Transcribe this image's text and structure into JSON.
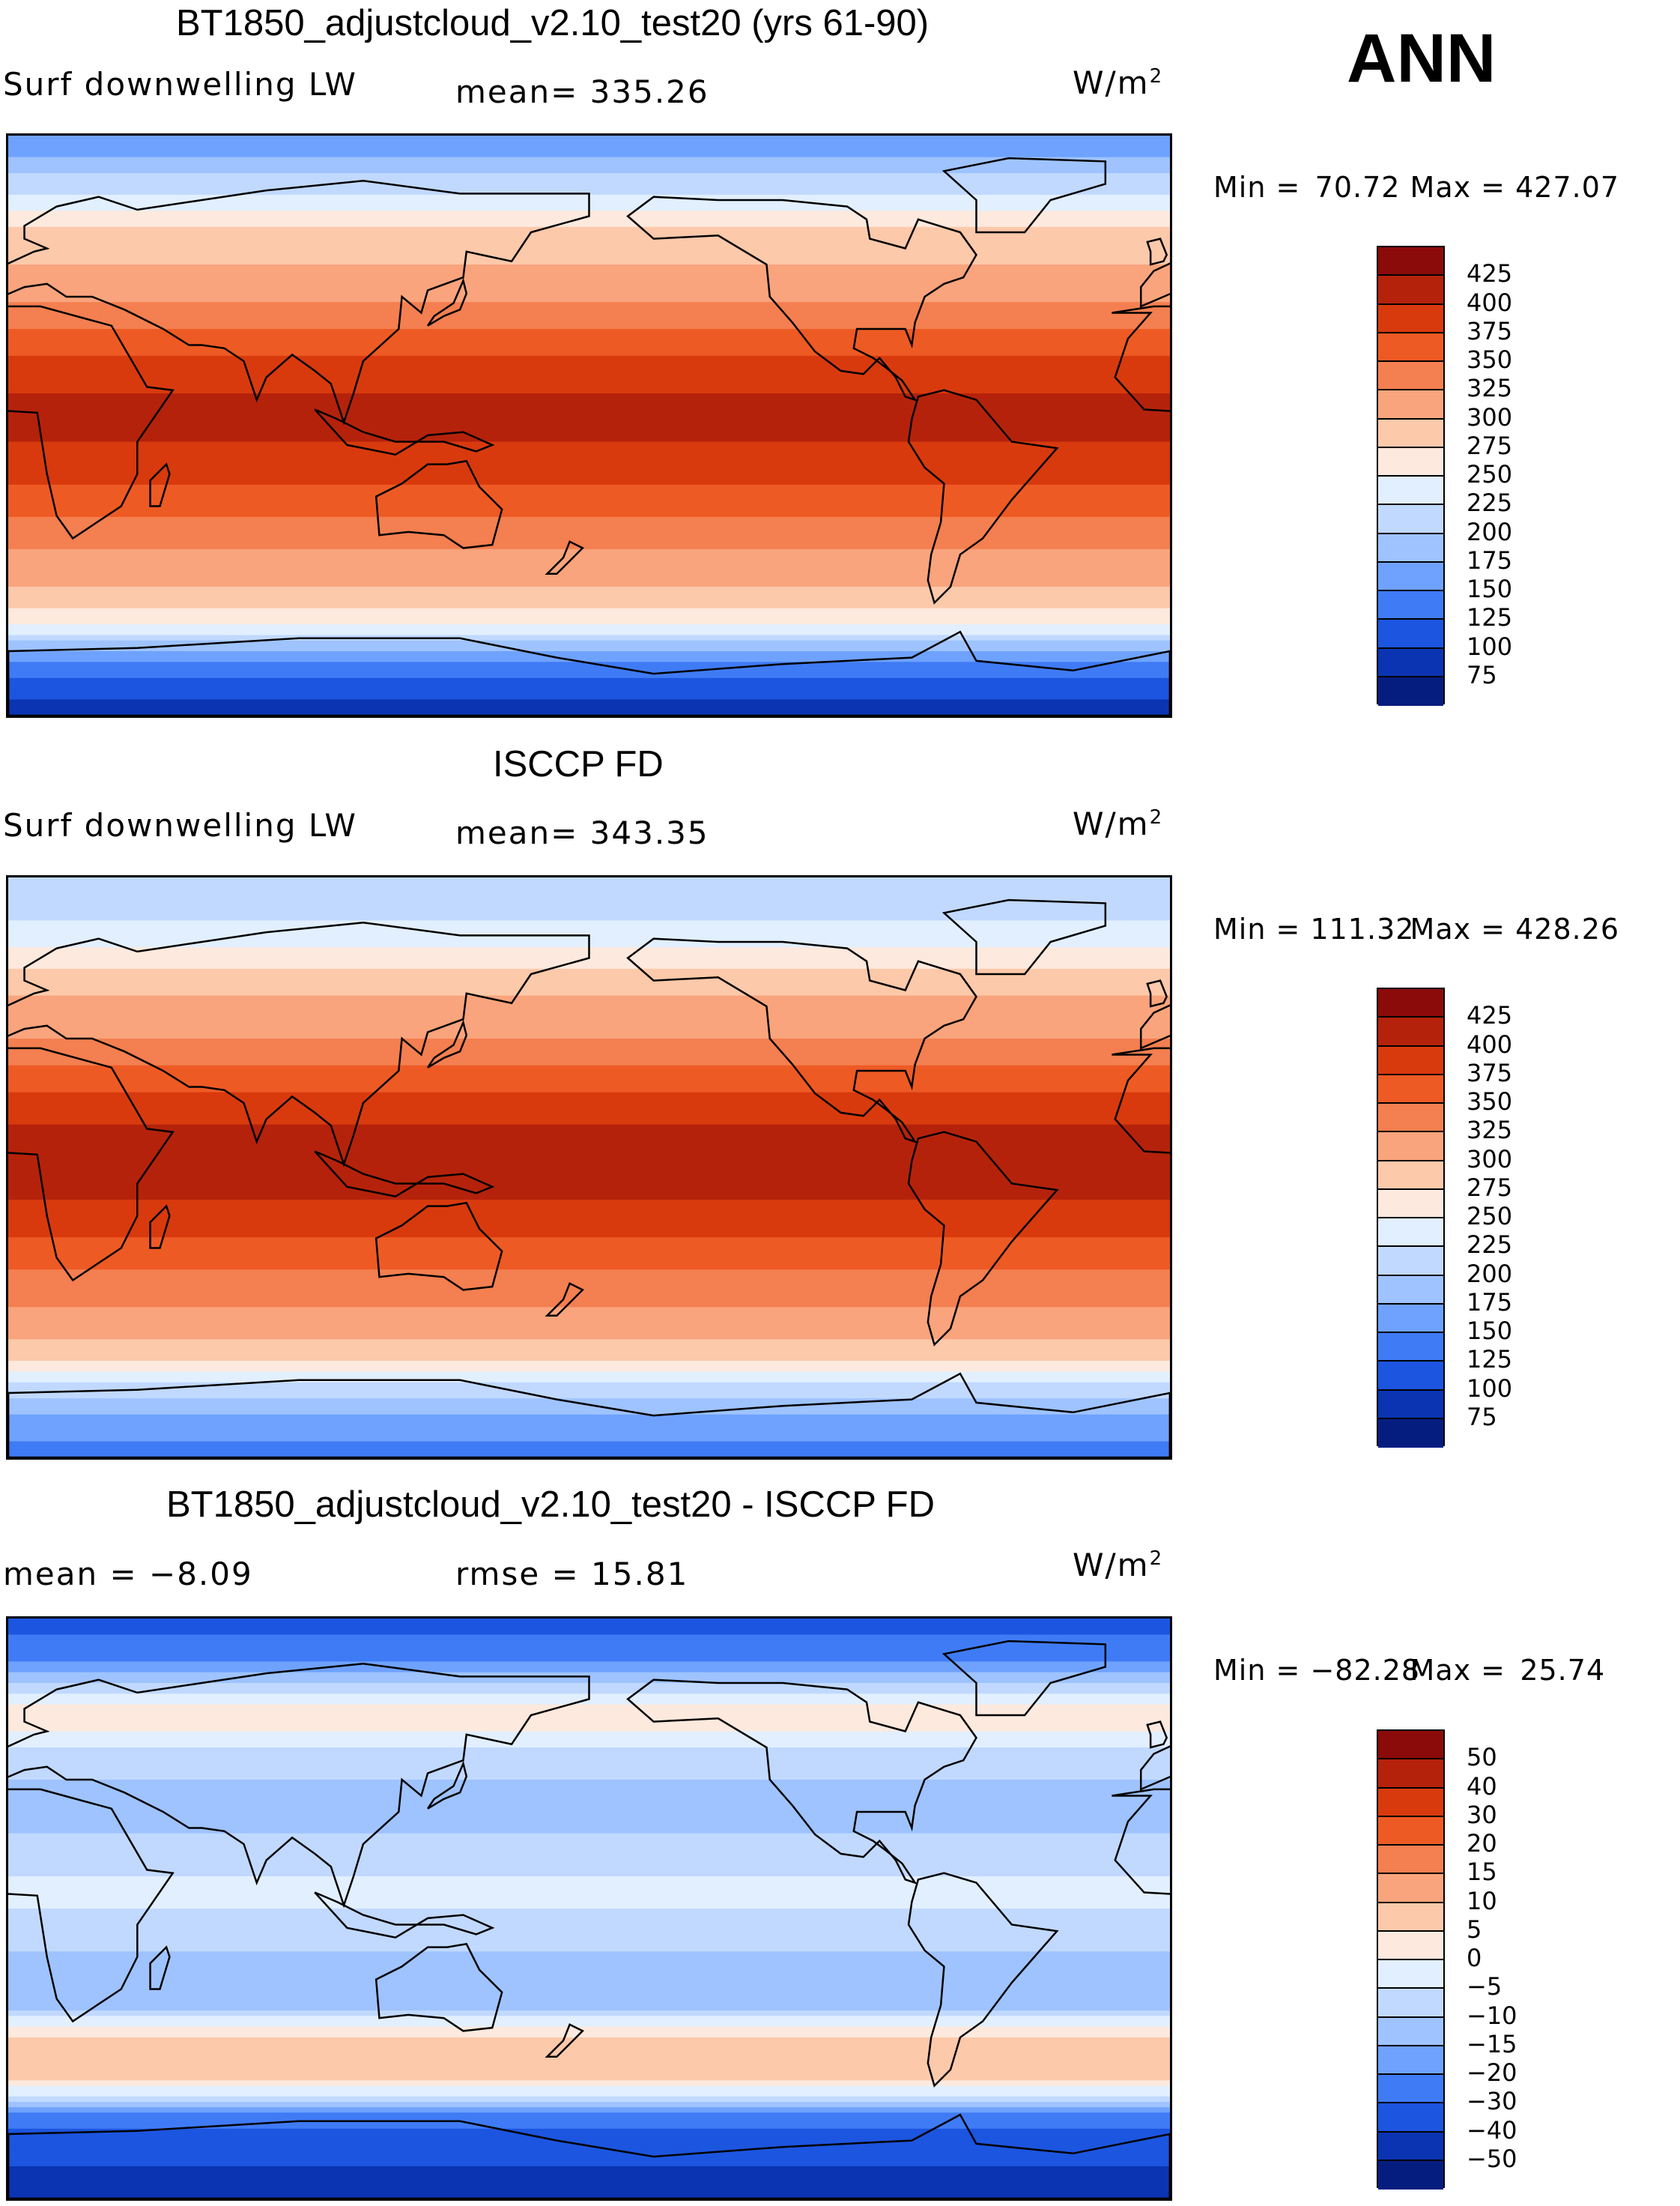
{
  "season": "ANN",
  "units_base": "W/m",
  "units_exp": "2",
  "panels": [
    {
      "title": "BT1850_adjustcloud_v2.10_test20 (yrs 61-90)",
      "variable": "Surf downwelling LW",
      "stat1": "mean= 335.26",
      "stat2": "",
      "min_label": "Min =",
      "min_value": "70.72",
      "max_label": "Max =",
      "max_value": "427.07",
      "colorbar": {
        "labels": [
          "425",
          "400",
          "375",
          "350",
          "325",
          "300",
          "275",
          "250",
          "225",
          "200",
          "175",
          "150",
          "125",
          "100",
          "75"
        ],
        "colors": [
          "#8b0a0a",
          "#b5220b",
          "#d83a0e",
          "#ee5a24",
          "#f47f50",
          "#f9a47c",
          "#fcc9aa",
          "#fde9dd",
          "#e2efff",
          "#c1d9ff",
          "#9ec3ff",
          "#6fa2ff",
          "#3f7bf5",
          "#1c55df",
          "#0a34b2",
          "#061d80"
        ]
      }
    },
    {
      "title": "ISCCP FD",
      "variable": "Surf downwelling LW",
      "stat1": "mean= 343.35",
      "stat2": "",
      "min_label": "Min =",
      "min_value": "111.32",
      "max_label": "Max =",
      "max_value": "428.26",
      "colorbar": {
        "labels": [
          "425",
          "400",
          "375",
          "350",
          "325",
          "300",
          "275",
          "250",
          "225",
          "200",
          "175",
          "150",
          "125",
          "100",
          "75"
        ],
        "colors": [
          "#8b0a0a",
          "#b5220b",
          "#d83a0e",
          "#ee5a24",
          "#f47f50",
          "#f9a47c",
          "#fcc9aa",
          "#fde9dd",
          "#e2efff",
          "#c1d9ff",
          "#9ec3ff",
          "#6fa2ff",
          "#3f7bf5",
          "#1c55df",
          "#0a34b2",
          "#061d80"
        ]
      }
    },
    {
      "title": "BT1850_adjustcloud_v2.10_test20 - ISCCP FD",
      "variable": "",
      "stat1": "mean =   −8.09",
      "stat2": "rmse =   15.81",
      "min_label": "Min =",
      "min_value": "−82.28",
      "max_label": "Max =",
      "max_value": "25.74",
      "colorbar": {
        "labels": [
          "50",
          "40",
          "30",
          "20",
          "15",
          "10",
          "5",
          "0",
          "−5",
          "−10",
          "−15",
          "−20",
          "−30",
          "−40",
          "−50"
        ],
        "colors": [
          "#8b0a0a",
          "#b5220b",
          "#d83a0e",
          "#ee5a24",
          "#f47f50",
          "#f9a47c",
          "#fcc9aa",
          "#fde9dd",
          "#e2efff",
          "#c1d9ff",
          "#9ec3ff",
          "#6fa2ff",
          "#3f7bf5",
          "#1c55df",
          "#0a34b2",
          "#061d80"
        ]
      }
    }
  ],
  "chart_data": [
    {
      "type": "heatmap",
      "title": "BT1850_adjustcloud_v2.10_test20 (yrs 61-90)",
      "subtitle": "Surf downwelling LW",
      "units": "W/m2",
      "mean": 335.26,
      "min": 70.72,
      "max": 427.07,
      "contour_levels": [
        75,
        100,
        125,
        150,
        175,
        200,
        225,
        250,
        275,
        300,
        325,
        350,
        375,
        400,
        425
      ],
      "lon_range": [
        0,
        360
      ],
      "lat_range": [
        -90,
        90
      ],
      "zonal_profile": {
        "lat": [
          90,
          80,
          70,
          60,
          50,
          40,
          30,
          20,
          10,
          0,
          -10,
          -20,
          -30,
          -40,
          -50,
          -60,
          -70,
          -80,
          -90
        ],
        "value": [
          150,
          190,
          235,
          280,
          300,
          320,
          350,
          380,
          400,
          405,
          395,
          370,
          345,
          320,
          300,
          265,
          170,
          110,
          90
        ]
      }
    },
    {
      "type": "heatmap",
      "title": "ISCCP FD",
      "subtitle": "Surf downwelling LW",
      "units": "W/m2",
      "mean": 343.35,
      "min": 111.32,
      "max": 428.26,
      "contour_levels": [
        75,
        100,
        125,
        150,
        175,
        200,
        225,
        250,
        275,
        300,
        325,
        350,
        375,
        400,
        425
      ],
      "lon_range": [
        0,
        360
      ],
      "lat_range": [
        -90,
        90
      ],
      "zonal_profile": {
        "lat": [
          90,
          80,
          70,
          60,
          50,
          40,
          30,
          20,
          10,
          0,
          -10,
          -20,
          -30,
          -40,
          -50,
          -60,
          -70,
          -80,
          -90
        ],
        "value": [
          200,
          215,
          240,
          285,
          305,
          325,
          355,
          385,
          405,
          410,
          400,
          380,
          355,
          330,
          310,
          280,
          205,
          160,
          140
        ]
      }
    },
    {
      "type": "heatmap",
      "title": "BT1850_adjustcloud_v2.10_test20 - ISCCP FD",
      "units": "W/m2",
      "mean": -8.09,
      "rmse": 15.81,
      "min": -82.28,
      "max": 25.74,
      "contour_levels": [
        -50,
        -40,
        -30,
        -20,
        -15,
        -10,
        -5,
        0,
        5,
        10,
        15,
        20,
        30,
        40,
        50
      ],
      "lon_range": [
        0,
        360
      ],
      "lat_range": [
        -90,
        90
      ],
      "zonal_profile": {
        "lat": [
          90,
          80,
          70,
          60,
          50,
          40,
          30,
          20,
          10,
          0,
          -10,
          -20,
          -30,
          -40,
          -50,
          -60,
          -70,
          -80,
          -90
        ],
        "value": [
          -35,
          -25,
          -10,
          5,
          -5,
          -10,
          -15,
          -8,
          -5,
          -5,
          -8,
          -15,
          -12,
          5,
          10,
          -10,
          -35,
          -40,
          -45
        ]
      }
    }
  ]
}
